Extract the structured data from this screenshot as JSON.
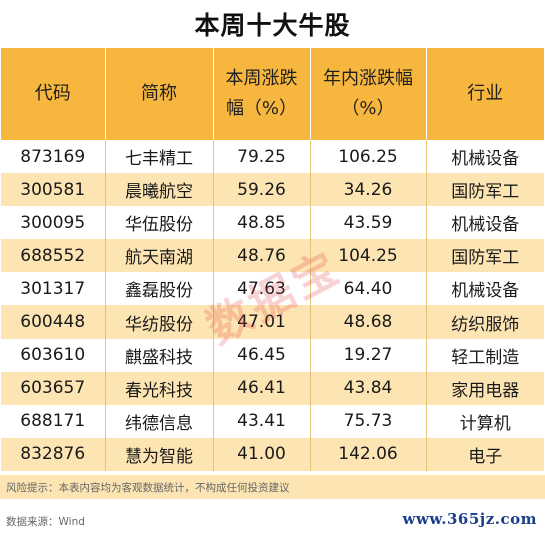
{
  "title": "本周十大牛股",
  "headers": {
    "code": "代码",
    "name": "简称",
    "week_change_l1": "本周涨跌",
    "week_change_l2": "幅（%）",
    "year_change_l1": "年内涨跌幅",
    "year_change_l2": "（%）",
    "industry": "行业"
  },
  "rows": [
    {
      "code": "873169",
      "name": "七丰精工",
      "week": "79.25",
      "year": "106.25",
      "industry": "机械设备"
    },
    {
      "code": "300581",
      "name": "晨曦航空",
      "week": "59.26",
      "year": "34.26",
      "industry": "国防军工"
    },
    {
      "code": "300095",
      "name": "华伍股份",
      "week": "48.85",
      "year": "43.59",
      "industry": "机械设备"
    },
    {
      "code": "688552",
      "name": "航天南湖",
      "week": "48.76",
      "year": "104.25",
      "industry": "国防军工"
    },
    {
      "code": "301317",
      "name": "鑫磊股份",
      "week": "47.63",
      "year": "64.40",
      "industry": "机械设备"
    },
    {
      "code": "600448",
      "name": "华纺股份",
      "week": "47.01",
      "year": "48.68",
      "industry": "纺织服饰"
    },
    {
      "code": "603610",
      "name": "麒盛科技",
      "week": "46.45",
      "year": "19.27",
      "industry": "轻工制造"
    },
    {
      "code": "603657",
      "name": "春光科技",
      "week": "46.41",
      "year": "43.84",
      "industry": "家用电器"
    },
    {
      "code": "688171",
      "name": "纬德信息",
      "week": "43.41",
      "year": "75.73",
      "industry": "计算机"
    },
    {
      "code": "832876",
      "name": "慧为智能",
      "week": "41.00",
      "year": "142.06",
      "industry": "电子"
    }
  ],
  "risk_note": "风险提示：本表内容均为客观数据统计，不构成任何投资建议",
  "source_note": "数据来源：Wind",
  "watermark": "数据宝",
  "site": "www.365jz.com",
  "colors": {
    "header_bg": "#f7b73f",
    "stripe_bg": "#fde5b3"
  }
}
